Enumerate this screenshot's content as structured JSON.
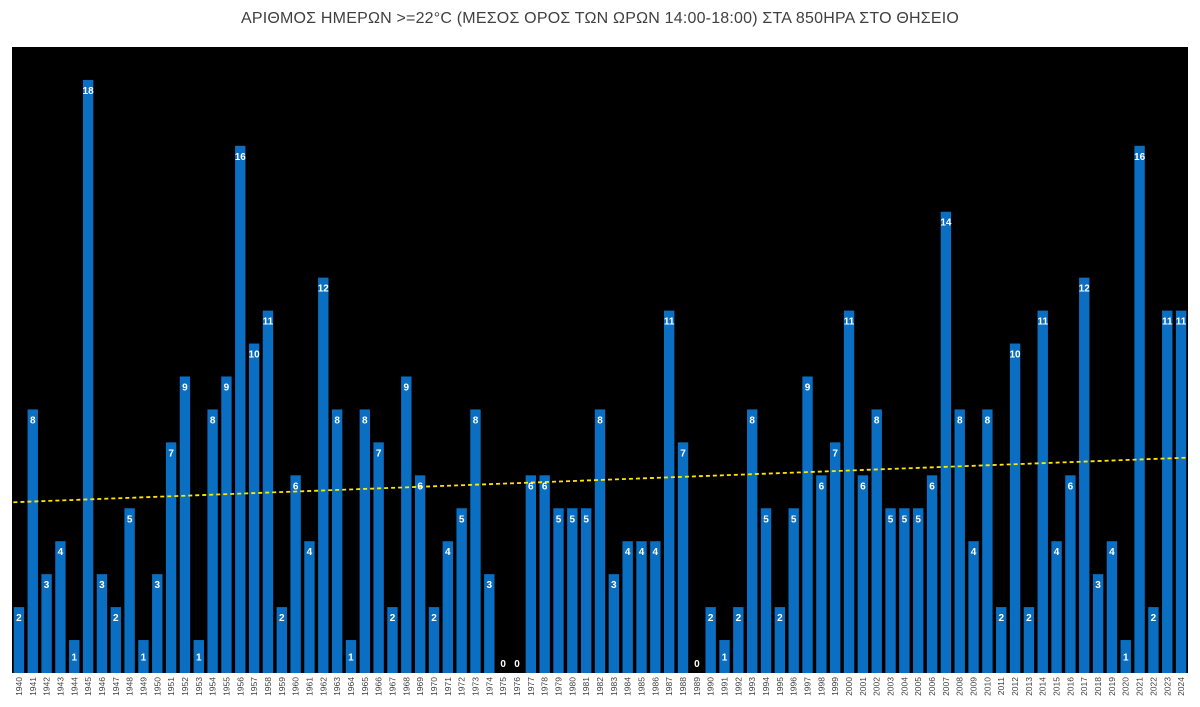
{
  "chart_data": {
    "type": "bar",
    "title": "ΑΡΙΘΜΟΣ ΗΜΕΡΩΝ >=22°C (ΜΕΣΟΣ ΟΡΟΣ ΤΩΝ ΩΡΩΝ 14:00-18:00)  ΣΤΑ 850ΗΡΑ ΣΤΟ ΘΗΣΕΙΟ",
    "xlabel": "",
    "ylabel": "",
    "ylim": [
      0,
      19
    ],
    "grid": false,
    "legend": "none",
    "categories": [
      "1940",
      "1941",
      "1942",
      "1943",
      "1944",
      "1945",
      "1946",
      "1947",
      "1948",
      "1949",
      "1950",
      "1951",
      "1952",
      "1953",
      "1954",
      "1955",
      "1956",
      "1957",
      "1958",
      "1959",
      "1960",
      "1961",
      "1962",
      "1963",
      "1964",
      "1965",
      "1966",
      "1967",
      "1968",
      "1969",
      "1970",
      "1971",
      "1972",
      "1973",
      "1974",
      "1975",
      "1976",
      "1977",
      "1978",
      "1979",
      "1980",
      "1981",
      "1982",
      "1983",
      "1984",
      "1985",
      "1986",
      "1987",
      "1988",
      "1989",
      "1990",
      "1991",
      "1992",
      "1993",
      "1994",
      "1995",
      "1996",
      "1997",
      "1998",
      "1999",
      "2000",
      "2001",
      "2002",
      "2003",
      "2004",
      "2005",
      "2006",
      "2007",
      "2008",
      "2009",
      "2010",
      "2011",
      "2012",
      "2013",
      "2014",
      "2015",
      "2016",
      "2017",
      "2018",
      "2019",
      "2020",
      "2021",
      "2022",
      "2023",
      "2024"
    ],
    "series": [
      {
        "values": [
          2,
          8,
          3,
          4,
          1,
          18,
          3,
          2,
          5,
          1,
          3,
          7,
          9,
          1,
          8,
          9,
          16,
          10,
          11,
          2,
          6,
          4,
          12,
          8,
          1,
          8,
          7,
          2,
          9,
          6,
          2,
          4,
          5,
          8,
          3,
          0,
          0,
          6,
          6,
          5,
          5,
          5,
          8,
          3,
          4,
          4,
          4,
          11,
          7,
          0,
          2,
          1,
          2,
          8,
          5,
          2,
          5,
          9,
          6,
          7,
          11,
          6,
          8,
          5,
          5,
          5,
          6,
          14,
          8,
          4,
          8,
          2,
          10,
          2,
          11,
          4,
          6,
          12,
          3,
          4,
          1,
          16,
          2,
          11,
          11
        ]
      }
    ],
    "trendline": {
      "type": "linear",
      "style": "dashed"
    },
    "colors": {
      "plot_background": "#000000",
      "bar": "#0A6FC2",
      "bar_label": "#FFFFFF",
      "trendline": "#FFE600",
      "tick_label": "#404040",
      "title": "#404040"
    }
  }
}
